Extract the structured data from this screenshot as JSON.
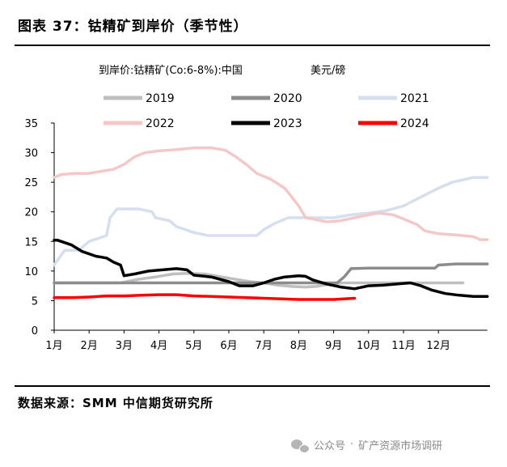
{
  "figure": {
    "title": "图表 37：钴精矿到岸价（季节性）",
    "source": "数据来源：SMM 中信期货研究所"
  },
  "watermark": {
    "icon": "wechat-icon",
    "prefix": "公众号",
    "separator": "·",
    "account": "矿产资源市场调研"
  },
  "chart_data": {
    "type": "line",
    "subtitle": "到岸价:钴精矿(Co:6-8%):中国",
    "unit": "美元/磅",
    "x_categories": [
      "1月",
      "2月",
      "3月",
      "4月",
      "5月",
      "6月",
      "7月",
      "8月",
      "9月",
      "10月",
      "11月",
      "12月"
    ],
    "x_range_months": [
      1,
      13.4
    ],
    "ylim": [
      0,
      35
    ],
    "yticks": [
      0,
      5,
      10,
      15,
      20,
      25,
      30,
      35
    ],
    "grid": false,
    "legend_position": "top",
    "series": [
      {
        "name": "2019",
        "color": "#bfbfbf",
        "points": [
          [
            1.0,
            8.0
          ],
          [
            1.5,
            8.0
          ],
          [
            2.2,
            8.0
          ],
          [
            2.9,
            8.0
          ],
          [
            3.4,
            8.6
          ],
          [
            3.9,
            9.0
          ],
          [
            4.4,
            9.5
          ],
          [
            4.8,
            9.6
          ],
          [
            5.3,
            9.5
          ],
          [
            5.8,
            9.0
          ],
          [
            6.2,
            8.6
          ],
          [
            6.6,
            8.2
          ],
          [
            7.0,
            8.0
          ],
          [
            7.4,
            7.6
          ],
          [
            7.8,
            7.4
          ],
          [
            8.2,
            7.3
          ],
          [
            8.5,
            7.4
          ],
          [
            8.9,
            7.8
          ],
          [
            9.3,
            8.0
          ],
          [
            10.0,
            8.0
          ],
          [
            11.0,
            8.0
          ],
          [
            12.0,
            8.0
          ],
          [
            12.7,
            8.0
          ]
        ]
      },
      {
        "name": "2020",
        "color": "#8c8c8c",
        "points": [
          [
            1.0,
            8.0
          ],
          [
            2.0,
            8.0
          ],
          [
            3.0,
            8.0
          ],
          [
            4.0,
            8.0
          ],
          [
            5.0,
            8.0
          ],
          [
            6.0,
            8.0
          ],
          [
            7.0,
            8.0
          ],
          [
            8.0,
            8.0
          ],
          [
            8.7,
            8.0
          ],
          [
            9.1,
            8.0
          ],
          [
            9.3,
            9.0
          ],
          [
            9.5,
            10.4
          ],
          [
            10.0,
            10.5
          ],
          [
            11.0,
            10.5
          ],
          [
            11.9,
            10.5
          ],
          [
            12.0,
            11.0
          ],
          [
            12.5,
            11.2
          ],
          [
            13.4,
            11.2
          ]
        ]
      },
      {
        "name": "2021",
        "color": "#d6dff0",
        "points": [
          [
            1.0,
            11.0
          ],
          [
            1.3,
            13.5
          ],
          [
            1.7,
            13.5
          ],
          [
            2.0,
            15.0
          ],
          [
            2.5,
            16.0
          ],
          [
            2.6,
            19.0
          ],
          [
            2.8,
            20.5
          ],
          [
            3.4,
            20.5
          ],
          [
            3.8,
            20.0
          ],
          [
            3.9,
            19.0
          ],
          [
            4.3,
            18.5
          ],
          [
            4.5,
            17.5
          ],
          [
            5.0,
            16.5
          ],
          [
            5.4,
            16.0
          ],
          [
            6.0,
            16.0
          ],
          [
            6.8,
            16.0
          ],
          [
            7.0,
            17.0
          ],
          [
            7.3,
            18.0
          ],
          [
            7.7,
            19.0
          ],
          [
            8.4,
            19.0
          ],
          [
            9.0,
            19.0
          ],
          [
            9.5,
            19.5
          ],
          [
            10.0,
            19.8
          ],
          [
            10.5,
            20.2
          ],
          [
            11.0,
            21.0
          ],
          [
            11.5,
            22.5
          ],
          [
            12.0,
            24.0
          ],
          [
            12.4,
            25.0
          ],
          [
            13.0,
            25.8
          ],
          [
            13.4,
            25.8
          ]
        ]
      },
      {
        "name": "2022",
        "color": "#f4c8c8",
        "points": [
          [
            1.0,
            25.8
          ],
          [
            1.2,
            26.3
          ],
          [
            1.6,
            26.5
          ],
          [
            2.0,
            26.5
          ],
          [
            2.3,
            26.8
          ],
          [
            2.7,
            27.2
          ],
          [
            3.0,
            28.0
          ],
          [
            3.3,
            29.3
          ],
          [
            3.6,
            30.0
          ],
          [
            4.0,
            30.3
          ],
          [
            4.5,
            30.5
          ],
          [
            5.0,
            30.8
          ],
          [
            5.5,
            30.8
          ],
          [
            5.9,
            30.4
          ],
          [
            6.2,
            29.3
          ],
          [
            6.5,
            28.0
          ],
          [
            6.8,
            26.5
          ],
          [
            7.2,
            25.5
          ],
          [
            7.6,
            24.0
          ],
          [
            7.8,
            22.5
          ],
          [
            8.0,
            21.0
          ],
          [
            8.2,
            19.0
          ],
          [
            8.4,
            18.8
          ],
          [
            8.8,
            18.3
          ],
          [
            9.2,
            18.5
          ],
          [
            9.6,
            19.0
          ],
          [
            10.0,
            19.5
          ],
          [
            10.3,
            19.8
          ],
          [
            10.7,
            19.5
          ],
          [
            11.0,
            18.8
          ],
          [
            11.4,
            17.8
          ],
          [
            11.6,
            16.8
          ],
          [
            12.0,
            16.3
          ],
          [
            12.5,
            16.1
          ],
          [
            13.0,
            15.8
          ],
          [
            13.2,
            15.3
          ],
          [
            13.4,
            15.3
          ]
        ]
      },
      {
        "name": "2023",
        "color": "#000000",
        "points": [
          [
            1.0,
            15.2
          ],
          [
            1.1,
            15.2
          ],
          [
            1.5,
            14.4
          ],
          [
            1.8,
            13.3
          ],
          [
            2.2,
            12.5
          ],
          [
            2.5,
            12.2
          ],
          [
            2.7,
            11.5
          ],
          [
            2.9,
            11.0
          ],
          [
            3.0,
            9.2
          ],
          [
            3.3,
            9.5
          ],
          [
            3.7,
            10.0
          ],
          [
            4.1,
            10.2
          ],
          [
            4.5,
            10.4
          ],
          [
            4.8,
            10.2
          ],
          [
            5.0,
            9.3
          ],
          [
            5.5,
            9.0
          ],
          [
            6.0,
            8.2
          ],
          [
            6.3,
            7.5
          ],
          [
            6.7,
            7.5
          ],
          [
            7.0,
            8.0
          ],
          [
            7.3,
            8.6
          ],
          [
            7.6,
            9.0
          ],
          [
            8.0,
            9.2
          ],
          [
            8.2,
            9.1
          ],
          [
            8.4,
            8.5
          ],
          [
            8.8,
            7.8
          ],
          [
            9.2,
            7.3
          ],
          [
            9.6,
            7.0
          ],
          [
            10.0,
            7.5
          ],
          [
            10.4,
            7.6
          ],
          [
            10.8,
            7.8
          ],
          [
            11.2,
            8.0
          ],
          [
            11.5,
            7.5
          ],
          [
            11.8,
            6.8
          ],
          [
            12.2,
            6.2
          ],
          [
            12.6,
            5.9
          ],
          [
            13.0,
            5.7
          ],
          [
            13.4,
            5.7
          ]
        ]
      },
      {
        "name": "2024",
        "color": "#ff0000",
        "points": [
          [
            1.0,
            5.5
          ],
          [
            1.5,
            5.5
          ],
          [
            2.0,
            5.6
          ],
          [
            2.5,
            5.8
          ],
          [
            3.0,
            5.8
          ],
          [
            3.5,
            5.9
          ],
          [
            4.0,
            6.0
          ],
          [
            4.5,
            6.0
          ],
          [
            5.0,
            5.8
          ],
          [
            5.5,
            5.7
          ],
          [
            6.0,
            5.6
          ],
          [
            6.5,
            5.5
          ],
          [
            7.0,
            5.4
          ],
          [
            7.5,
            5.3
          ],
          [
            8.0,
            5.2
          ],
          [
            8.5,
            5.2
          ],
          [
            9.0,
            5.2
          ],
          [
            9.3,
            5.3
          ],
          [
            9.6,
            5.4
          ]
        ]
      }
    ]
  }
}
